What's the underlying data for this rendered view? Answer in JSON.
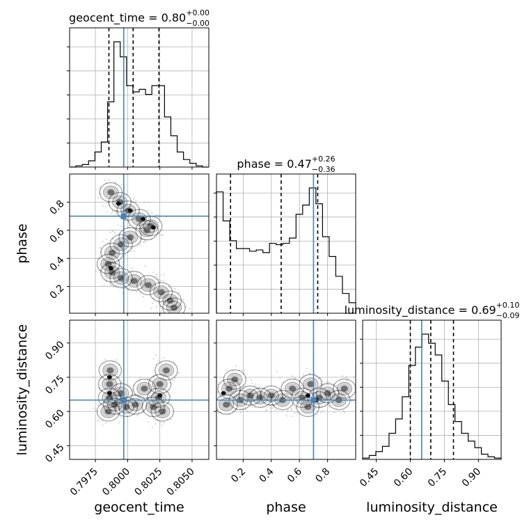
{
  "chart_data": {
    "type": "corner",
    "parameters": [
      "geocent_time",
      "phase",
      "luminosity_distance"
    ],
    "truths": {
      "geocent_time": 0.7997,
      "phase": 0.7,
      "luminosity_distance": 0.65
    },
    "truth_color": "#4682b4",
    "titles": [
      {
        "name": "geocent_time",
        "median": "0.80",
        "plus": "+0.00",
        "minus": "−0.00"
      },
      {
        "name": "phase",
        "median": "0.47",
        "plus": "+0.26",
        "minus": "−0.36"
      },
      {
        "name": "luminosity_distance",
        "median": "0.69",
        "plus": "+0.10",
        "minus": "−0.09"
      }
    ],
    "axis_labels": {
      "geocent_time": "geocent_time",
      "phase": "phase",
      "luminosity_distance": "luminosity_distance"
    },
    "ranges": {
      "geocent_time": [
        0.7955,
        0.8063
      ],
      "phase": [
        0.01,
        1.0
      ],
      "luminosity_distance": [
        0.39,
        1.0
      ]
    },
    "ticks": {
      "geocent_time": [
        "0.7975",
        "0.8000",
        "0.8025",
        "0.8050"
      ],
      "phase": [
        "0.2",
        "0.4",
        "0.6",
        "0.8"
      ],
      "luminosity_distance": [
        "0.45",
        "0.60",
        "0.75",
        "0.90"
      ]
    },
    "grid": true,
    "histograms": {
      "geocent_time": {
        "quantiles": [
          0.79855,
          0.80043,
          0.80243
        ],
        "counts": [
          0,
          1,
          2,
          5,
          12,
          20,
          52,
          100,
          88,
          65,
          60,
          62,
          58,
          65,
          65,
          40,
          25,
          12,
          6,
          3,
          1,
          0
        ]
      },
      "phase": {
        "quantiles": [
          0.11,
          0.47,
          0.73
        ],
        "counts": [
          92,
          70,
          55,
          49,
          49,
          47,
          48,
          46,
          53,
          52,
          53,
          57,
          75,
          82,
          95,
          83,
          58,
          43,
          28,
          15,
          8
        ]
      },
      "luminosity_distance": {
        "quantiles": [
          0.6,
          0.69,
          0.79
        ],
        "counts": [
          1,
          3,
          6,
          10,
          20,
          31,
          48,
          72,
          86,
          96,
          89,
          80,
          60,
          42,
          29,
          20,
          14,
          9,
          4,
          2,
          1
        ]
      }
    },
    "density_regions": {
      "phase_vs_geocent_time": {
        "main": [
          [
            0.7987,
            0.87
          ],
          [
            0.7994,
            0.8
          ],
          [
            0.80005,
            0.74
          ],
          [
            0.8009,
            0.68
          ],
          [
            0.8018,
            0.63
          ],
          [
            0.8015,
            0.6
          ],
          [
            0.8002,
            0.55
          ],
          [
            0.7995,
            0.5
          ],
          [
            0.7988,
            0.44
          ],
          [
            0.7985,
            0.36
          ],
          [
            0.7988,
            0.3
          ],
          [
            0.7995,
            0.26
          ],
          [
            0.8005,
            0.24
          ],
          [
            0.8016,
            0.21
          ],
          [
            0.8026,
            0.16
          ],
          [
            0.8033,
            0.1
          ],
          [
            0.8036,
            0.05
          ]
        ],
        "cores": [
          [
            0.7993,
            0.79
          ],
          [
            0.8002,
            0.74
          ],
          [
            0.8012,
            0.68
          ],
          [
            0.802,
            0.62
          ],
          [
            0.7987,
            0.33
          ]
        ]
      },
      "luminosity_distance_vs_geocent_time": {
        "main": [
          [
            0.7985,
            0.6
          ],
          [
            0.7986,
            0.66
          ],
          [
            0.7986,
            0.72
          ],
          [
            0.79865,
            0.78
          ],
          [
            0.799,
            0.63
          ],
          [
            0.7995,
            0.68
          ],
          [
            0.7999,
            0.62
          ],
          [
            0.8006,
            0.63
          ],
          [
            0.8013,
            0.7
          ],
          [
            0.802,
            0.62
          ],
          [
            0.8024,
            0.66
          ],
          [
            0.8025,
            0.72
          ],
          [
            0.8027,
            0.6
          ],
          [
            0.803,
            0.78
          ]
        ],
        "cores": [
          [
            0.7986,
            0.68
          ],
          [
            0.7986,
            0.75
          ],
          [
            0.8025,
            0.67
          ]
        ]
      },
      "luminosity_distance_vs_phase": {
        "main": [
          [
            0.08,
            0.63
          ],
          [
            0.1,
            0.7
          ],
          [
            0.14,
            0.74
          ],
          [
            0.18,
            0.65
          ],
          [
            0.25,
            0.67
          ],
          [
            0.32,
            0.66
          ],
          [
            0.4,
            0.67
          ],
          [
            0.48,
            0.65
          ],
          [
            0.55,
            0.7
          ],
          [
            0.62,
            0.66
          ],
          [
            0.66,
            0.62
          ],
          [
            0.68,
            0.72
          ],
          [
            0.74,
            0.66
          ],
          [
            0.8,
            0.68
          ],
          [
            0.88,
            0.65
          ],
          [
            0.92,
            0.7
          ]
        ],
        "cores": [
          [
            0.06,
            0.68
          ],
          [
            0.66,
            0.67
          ],
          [
            0.72,
            0.65
          ]
        ]
      }
    }
  }
}
